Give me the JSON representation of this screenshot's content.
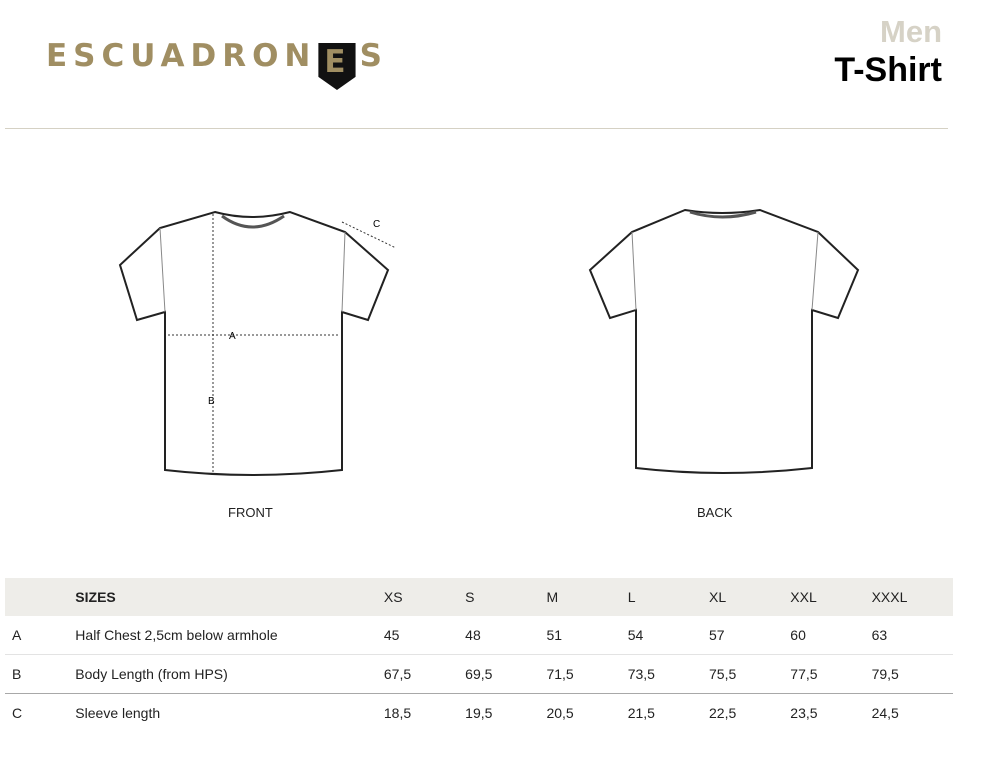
{
  "brand": {
    "name": "ESCUADRONES",
    "color": "#a08e62"
  },
  "header": {
    "category": "Men",
    "product": "T-Shirt"
  },
  "drawings": {
    "front_label": "FRONT",
    "back_label": "BACK",
    "measure_labels": [
      "A",
      "B",
      "C"
    ]
  },
  "table": {
    "title": "SIZES",
    "sizes": [
      "XS",
      "S",
      "M",
      "L",
      "XL",
      "XXL",
      "XXXL"
    ],
    "rows": [
      {
        "key": "A",
        "label": "Half Chest 2,5cm below armhole",
        "values": [
          "45",
          "48",
          "51",
          "54",
          "57",
          "60",
          "63"
        ]
      },
      {
        "key": "B",
        "label": "Body Length (from HPS)",
        "values": [
          "67,5",
          "69,5",
          "71,5",
          "73,5",
          "75,5",
          "77,5",
          "79,5"
        ]
      },
      {
        "key": "C",
        "label": "Sleeve length",
        "values": [
          "18,5",
          "19,5",
          "20,5",
          "21,5",
          "22,5",
          "23,5",
          "24,5"
        ]
      }
    ]
  }
}
